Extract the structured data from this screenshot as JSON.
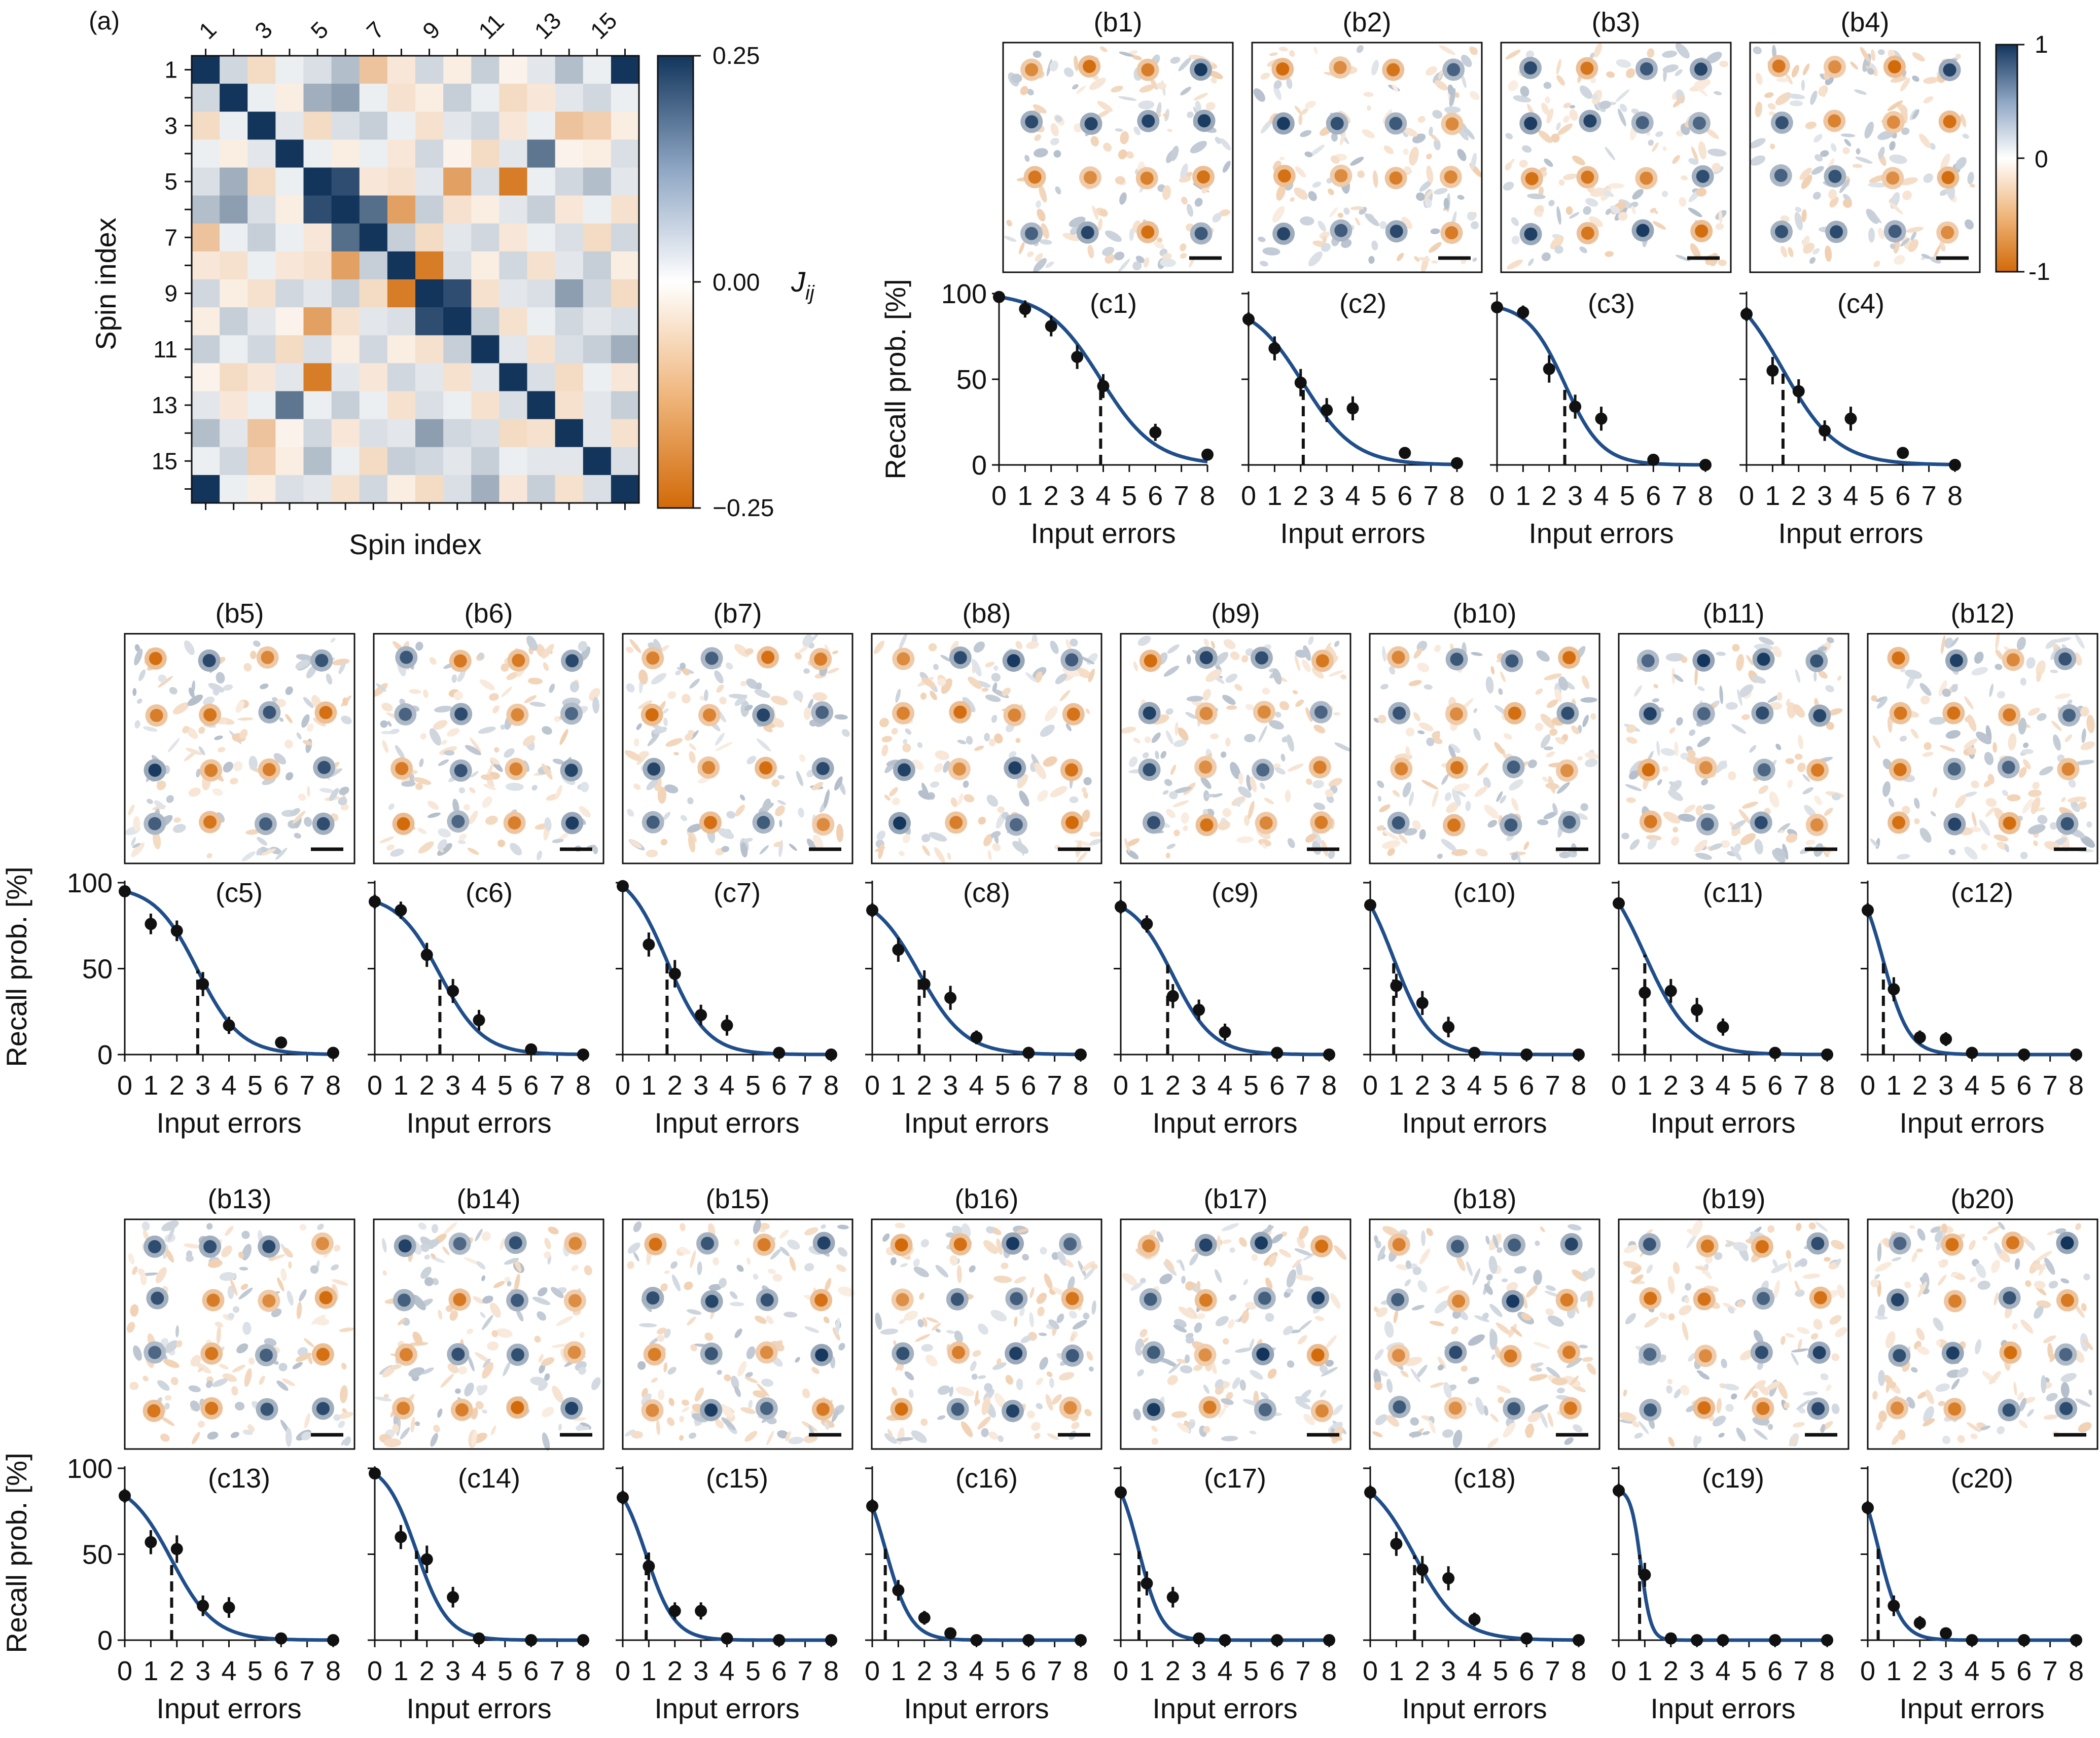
{
  "figure_title": "Associative memory recall: coupling matrix, recalled patterns and recall probability vs input errors",
  "colors": {
    "pos": "#13355c",
    "neg": "#d26a09",
    "mid": "#ffffff",
    "fit": "#1f4e8a",
    "point": "#111111",
    "axis": "#111111"
  },
  "panel_a": {
    "label": "(a)",
    "xlabel": "Spin index",
    "ylabel": "Spin index",
    "top_ticks": [
      "1",
      "3",
      "5",
      "7",
      "9",
      "11",
      "13",
      "15"
    ],
    "left_ticks": [
      "1",
      "3",
      "5",
      "7",
      "9",
      "11",
      "13",
      "15"
    ],
    "colorbar": {
      "label": "J",
      "label_sub": "ij",
      "ticks": [
        "0.25",
        "0.00",
        "−0.25"
      ],
      "vmin": -0.25,
      "vmax": 0.25
    },
    "matrix": [
      [
        0.25,
        0.05,
        -0.06,
        0.02,
        0.04,
        0.08,
        -0.1,
        -0.04,
        0.05,
        -0.03,
        0.06,
        -0.02,
        0.03,
        0.08,
        0.02,
        0.25
      ],
      [
        0.05,
        0.25,
        0.02,
        -0.03,
        0.1,
        0.12,
        0.02,
        -0.05,
        -0.03,
        0.06,
        0.02,
        -0.06,
        -0.04,
        0.03,
        0.05,
        0.02
      ],
      [
        -0.06,
        0.02,
        0.25,
        0.03,
        -0.06,
        0.04,
        0.06,
        0.02,
        -0.05,
        0.03,
        0.05,
        -0.04,
        0.02,
        -0.1,
        -0.08,
        -0.03
      ],
      [
        0.02,
        -0.03,
        0.03,
        0.25,
        0.02,
        -0.03,
        0.02,
        -0.04,
        0.05,
        -0.02,
        -0.06,
        0.03,
        0.17,
        -0.02,
        -0.03,
        0.04
      ],
      [
        0.04,
        0.1,
        -0.06,
        0.02,
        0.25,
        0.22,
        -0.04,
        -0.05,
        0.03,
        -0.16,
        0.04,
        -0.22,
        0.02,
        0.05,
        0.08,
        0.03
      ],
      [
        0.08,
        0.12,
        0.04,
        -0.03,
        0.22,
        0.25,
        0.18,
        -0.16,
        0.06,
        -0.05,
        -0.03,
        0.03,
        0.06,
        -0.04,
        0.02,
        -0.05
      ],
      [
        -0.1,
        0.02,
        0.06,
        0.02,
        -0.04,
        0.18,
        0.25,
        0.06,
        -0.06,
        0.03,
        0.05,
        -0.04,
        0.02,
        0.04,
        -0.06,
        0.05
      ],
      [
        -0.04,
        -0.05,
        0.02,
        -0.04,
        -0.05,
        -0.16,
        0.06,
        0.25,
        -0.22,
        0.04,
        -0.03,
        0.05,
        -0.05,
        0.03,
        0.06,
        -0.03
      ],
      [
        0.05,
        -0.03,
        -0.05,
        0.05,
        0.03,
        0.06,
        -0.06,
        -0.22,
        0.25,
        0.22,
        -0.05,
        0.03,
        0.04,
        0.12,
        0.05,
        -0.06
      ],
      [
        -0.03,
        0.06,
        0.03,
        -0.02,
        -0.16,
        -0.05,
        0.03,
        0.04,
        0.22,
        0.25,
        0.06,
        -0.05,
        0.02,
        0.05,
        0.03,
        0.04
      ],
      [
        0.06,
        0.02,
        0.05,
        -0.06,
        0.04,
        -0.03,
        0.05,
        -0.03,
        -0.05,
        0.06,
        0.25,
        0.03,
        -0.05,
        0.04,
        0.06,
        0.1
      ],
      [
        -0.02,
        -0.06,
        -0.04,
        0.03,
        -0.22,
        0.03,
        -0.04,
        0.05,
        0.03,
        -0.05,
        0.03,
        0.25,
        0.04,
        -0.06,
        0.02,
        -0.04
      ],
      [
        0.03,
        -0.04,
        0.02,
        0.17,
        0.02,
        0.06,
        0.02,
        -0.05,
        0.04,
        0.02,
        -0.05,
        0.04,
        0.25,
        -0.05,
        0.03,
        0.06
      ],
      [
        0.08,
        0.03,
        -0.1,
        -0.02,
        0.05,
        -0.04,
        0.04,
        0.03,
        0.12,
        0.05,
        0.04,
        -0.06,
        -0.05,
        0.25,
        0.03,
        -0.05
      ],
      [
        0.02,
        0.05,
        -0.08,
        -0.03,
        0.08,
        0.02,
        -0.06,
        0.06,
        0.05,
        0.03,
        0.06,
        0.02,
        0.03,
        0.03,
        0.25,
        0.04
      ],
      [
        0.25,
        0.02,
        -0.03,
        0.04,
        0.03,
        -0.05,
        0.05,
        -0.03,
        -0.06,
        0.04,
        0.1,
        -0.04,
        0.06,
        -0.05,
        0.04,
        0.25
      ]
    ]
  },
  "pattern_colorbar": {
    "ticks": [
      "1",
      "0",
      "-1"
    ]
  },
  "pattern_panels": [
    {
      "label": "(b1)",
      "pattern": [
        -1,
        -1,
        -1,
        1,
        1,
        1,
        1,
        1,
        -1,
        -1,
        -1,
        -1,
        1,
        1,
        -1,
        1
      ]
    },
    {
      "label": "(b2)",
      "pattern": [
        -1,
        -1,
        -1,
        1,
        1,
        1,
        1,
        -1,
        -1,
        -1,
        -1,
        -1,
        1,
        1,
        1,
        -1
      ]
    },
    {
      "label": "(b3)",
      "pattern": [
        1,
        -1,
        1,
        1,
        1,
        1,
        1,
        1,
        -1,
        -1,
        -1,
        1,
        1,
        -1,
        1,
        -1
      ]
    },
    {
      "label": "(b4)",
      "pattern": [
        -1,
        -1,
        -1,
        1,
        1,
        -1,
        -1,
        -1,
        1,
        1,
        -1,
        -1,
        1,
        1,
        1,
        -1
      ]
    },
    {
      "label": "(b5)",
      "pattern": [
        -1,
        1,
        -1,
        1,
        -1,
        -1,
        1,
        -1,
        1,
        -1,
        -1,
        1,
        1,
        -1,
        1,
        1
      ]
    },
    {
      "label": "(b6)",
      "pattern": [
        1,
        -1,
        -1,
        1,
        1,
        1,
        -1,
        1,
        -1,
        1,
        -1,
        1,
        -1,
        1,
        -1,
        1
      ]
    },
    {
      "label": "(b7)",
      "pattern": [
        -1,
        1,
        -1,
        -1,
        -1,
        -1,
        1,
        1,
        1,
        -1,
        -1,
        1,
        1,
        -1,
        1,
        -1
      ]
    },
    {
      "label": "(b8)",
      "pattern": [
        -1,
        1,
        1,
        1,
        -1,
        -1,
        -1,
        -1,
        1,
        -1,
        1,
        -1,
        1,
        -1,
        1,
        -1
      ]
    },
    {
      "label": "(b9)",
      "pattern": [
        -1,
        1,
        1,
        -1,
        1,
        -1,
        -1,
        1,
        1,
        -1,
        1,
        -1,
        1,
        -1,
        -1,
        -1
      ]
    },
    {
      "label": "(b10)",
      "pattern": [
        -1,
        1,
        1,
        -1,
        1,
        -1,
        -1,
        1,
        -1,
        -1,
        1,
        -1,
        1,
        -1,
        1,
        1
      ]
    },
    {
      "label": "(b11)",
      "pattern": [
        1,
        1,
        1,
        1,
        1,
        1,
        1,
        1,
        -1,
        -1,
        1,
        -1,
        -1,
        1,
        1,
        -1
      ]
    },
    {
      "label": "(b12)",
      "pattern": [
        -1,
        1,
        -1,
        1,
        -1,
        -1,
        -1,
        1,
        -1,
        1,
        1,
        -1,
        -1,
        1,
        -1,
        1
      ]
    },
    {
      "label": "(b13)",
      "pattern": [
        1,
        1,
        1,
        -1,
        1,
        -1,
        -1,
        -1,
        1,
        -1,
        1,
        -1,
        -1,
        -1,
        1,
        1
      ]
    },
    {
      "label": "(b14)",
      "pattern": [
        1,
        1,
        1,
        -1,
        1,
        -1,
        1,
        -1,
        -1,
        1,
        1,
        -1,
        -1,
        -1,
        -1,
        1
      ]
    },
    {
      "label": "(b15)",
      "pattern": [
        -1,
        1,
        -1,
        1,
        1,
        1,
        1,
        -1,
        -1,
        1,
        -1,
        1,
        -1,
        1,
        1,
        -1
      ]
    },
    {
      "label": "(b16)",
      "pattern": [
        -1,
        -1,
        1,
        1,
        -1,
        1,
        1,
        -1,
        1,
        -1,
        1,
        1,
        -1,
        1,
        1,
        -1
      ]
    },
    {
      "label": "(b17)",
      "pattern": [
        -1,
        1,
        1,
        -1,
        1,
        -1,
        1,
        1,
        1,
        -1,
        1,
        -1,
        1,
        -1,
        1,
        -1
      ]
    },
    {
      "label": "(b18)",
      "pattern": [
        -1,
        1,
        1,
        1,
        1,
        -1,
        1,
        -1,
        -1,
        1,
        -1,
        -1,
        1,
        -1,
        1,
        -1
      ]
    },
    {
      "label": "(b19)",
      "pattern": [
        1,
        -1,
        -1,
        1,
        -1,
        -1,
        1,
        -1,
        1,
        -1,
        1,
        1,
        1,
        -1,
        -1,
        1
      ]
    },
    {
      "label": "(b20)",
      "pattern": [
        1,
        -1,
        -1,
        1,
        1,
        -1,
        1,
        -1,
        1,
        1,
        -1,
        1,
        -1,
        -1,
        1,
        1
      ]
    }
  ],
  "chart_data": {
    "type": "line+scatter",
    "xlabel": "Input errors",
    "ylabel": "Recall prob. [%]",
    "xlim": [
      0,
      8
    ],
    "ylim": [
      0,
      100
    ],
    "xticks": [
      "0",
      "1",
      "2",
      "3",
      "4",
      "5",
      "6",
      "7",
      "8"
    ],
    "yticks": [
      "0",
      "50",
      "100"
    ],
    "x": [
      0,
      1,
      2,
      3,
      4,
      6,
      8
    ],
    "panels": [
      {
        "label": "(c1)",
        "y": [
          98,
          91,
          81,
          63,
          46,
          19,
          6
        ],
        "err": [
          3,
          5,
          6,
          7,
          7,
          5,
          2
        ],
        "fit_center": 3.9,
        "fit_width": 1.9,
        "fit_top": 100,
        "threshold": 3.9
      },
      {
        "label": "(c2)",
        "y": [
          85,
          68,
          48,
          32,
          33,
          7,
          1
        ],
        "err": [
          4,
          7,
          8,
          7,
          7,
          3,
          1
        ],
        "fit_center": 2.1,
        "fit_width": 1.8,
        "fit_top": 100,
        "threshold": 2.1
      },
      {
        "label": "(c3)",
        "y": [
          92,
          89,
          56,
          34,
          27,
          3,
          0
        ],
        "err": [
          3,
          4,
          8,
          7,
          7,
          2,
          0
        ],
        "fit_center": 2.6,
        "fit_width": 1.3,
        "fit_top": 96,
        "threshold": 2.6
      },
      {
        "label": "(c4)",
        "y": [
          88,
          55,
          43,
          20,
          27,
          7,
          0
        ],
        "err": [
          4,
          8,
          7,
          6,
          7,
          3,
          0
        ],
        "fit_center": 1.4,
        "fit_width": 1.9,
        "fit_top": 100,
        "threshold": 1.4
      },
      {
        "label": "(c5)",
        "y": [
          95,
          76,
          72,
          41,
          17,
          7,
          1
        ],
        "err": [
          3,
          6,
          6,
          7,
          5,
          3,
          1
        ],
        "fit_center": 2.8,
        "fit_width": 1.5,
        "fit_top": 100,
        "threshold": 2.8
      },
      {
        "label": "(c6)",
        "y": [
          89,
          84,
          58,
          37,
          20,
          3,
          0
        ],
        "err": [
          4,
          5,
          7,
          7,
          6,
          2,
          0
        ],
        "fit_center": 2.5,
        "fit_width": 1.5,
        "fit_top": 100,
        "threshold": 2.5
      },
      {
        "label": "(c7)",
        "y": [
          98,
          64,
          47,
          23,
          17,
          1,
          0
        ],
        "err": [
          3,
          7,
          8,
          6,
          6,
          1,
          0
        ],
        "fit_center": 1.7,
        "fit_width": 1.4,
        "fit_top": 100,
        "threshold": 1.7
      },
      {
        "label": "(c8)",
        "y": [
          84,
          61,
          41,
          33,
          10,
          1,
          0
        ],
        "err": [
          4,
          7,
          8,
          7,
          4,
          1,
          0
        ],
        "fit_center": 1.8,
        "fit_width": 1.6,
        "fit_top": 100,
        "threshold": 1.8
      },
      {
        "label": "(c9)",
        "y": [
          86,
          76,
          34,
          26,
          13,
          1,
          0
        ],
        "err": [
          4,
          5,
          7,
          6,
          5,
          1,
          0
        ],
        "fit_center": 2.0,
        "fit_width": 1.4,
        "fit_top": 100,
        "threshold": 1.8
      },
      {
        "label": "(c10)",
        "y": [
          87,
          40,
          30,
          16,
          1,
          0,
          0
        ],
        "err": [
          3,
          7,
          7,
          6,
          1,
          0,
          0
        ],
        "fit_center": 0.9,
        "fit_width": 1.3,
        "fit_top": 100,
        "threshold": 0.9
      },
      {
        "label": "(c11)",
        "y": [
          88,
          36,
          37,
          26,
          16,
          1,
          0
        ],
        "err": [
          3,
          8,
          7,
          7,
          5,
          1,
          0
        ],
        "fit_center": 1.0,
        "fit_width": 1.6,
        "fit_top": 100,
        "threshold": 1.0
      },
      {
        "label": "(c12)",
        "y": [
          84,
          38,
          10,
          9,
          1,
          0,
          0
        ],
        "err": [
          4,
          7,
          4,
          4,
          1,
          0,
          0
        ],
        "fit_center": 0.6,
        "fit_width": 0.9,
        "fit_top": 100,
        "threshold": 0.6
      },
      {
        "label": "(c13)",
        "y": [
          84,
          57,
          53,
          20,
          19,
          1,
          0
        ],
        "err": [
          4,
          7,
          8,
          6,
          6,
          1,
          0
        ],
        "fit_center": 1.8,
        "fit_width": 1.5,
        "fit_top": 100,
        "threshold": 1.8
      },
      {
        "label": "(c14)",
        "y": [
          97,
          60,
          47,
          25,
          1,
          0,
          0
        ],
        "err": [
          3,
          7,
          8,
          6,
          1,
          0,
          0
        ],
        "fit_center": 1.6,
        "fit_width": 1.1,
        "fit_top": 100,
        "threshold": 1.6
      },
      {
        "label": "(c15)",
        "y": [
          83,
          43,
          17,
          17,
          1,
          0,
          0
        ],
        "err": [
          4,
          8,
          5,
          5,
          1,
          0,
          0
        ],
        "fit_center": 0.9,
        "fit_width": 1.0,
        "fit_top": 100,
        "threshold": 0.9
      },
      {
        "label": "(c16)",
        "y": [
          78,
          29,
          13,
          4,
          0,
          0,
          0
        ],
        "err": [
          4,
          6,
          4,
          2,
          0,
          0,
          0
        ],
        "fit_center": 0.5,
        "fit_width": 0.9,
        "fit_top": 100,
        "threshold": 0.5
      },
      {
        "label": "(c17)",
        "y": [
          86,
          33,
          25,
          1,
          0,
          0,
          0
        ],
        "err": [
          3,
          7,
          6,
          1,
          0,
          0,
          0
        ],
        "fit_center": 0.7,
        "fit_width": 0.8,
        "fit_top": 100,
        "threshold": 0.7
      },
      {
        "label": "(c18)",
        "y": [
          86,
          56,
          41,
          36,
          12,
          1,
          0
        ],
        "err": [
          4,
          7,
          8,
          7,
          4,
          1,
          0
        ],
        "fit_center": 1.7,
        "fit_width": 1.6,
        "fit_top": 100,
        "threshold": 1.7
      },
      {
        "label": "(c19)",
        "y": [
          87,
          38,
          1,
          0,
          0,
          0,
          0
        ],
        "err": [
          4,
          7,
          1,
          0,
          0,
          0,
          0
        ],
        "fit_center": 0.85,
        "fit_width": 0.35,
        "fit_top": 98,
        "threshold": 0.8
      },
      {
        "label": "(c20)",
        "y": [
          77,
          20,
          10,
          4,
          0,
          0,
          0
        ],
        "err": [
          4,
          6,
          4,
          2,
          0,
          0,
          0
        ],
        "fit_center": 0.4,
        "fit_width": 0.8,
        "fit_top": 100,
        "threshold": 0.4
      }
    ]
  }
}
